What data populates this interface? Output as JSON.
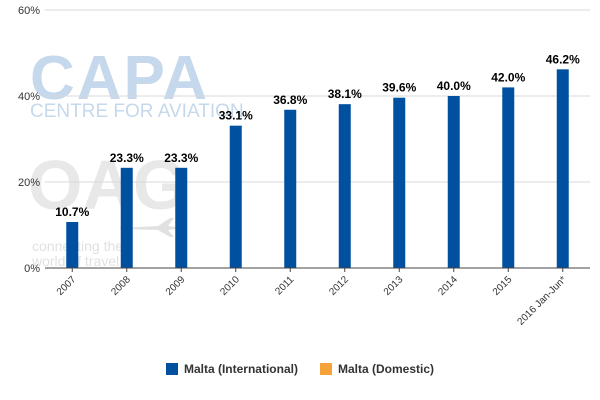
{
  "watermarks": {
    "capa_logo": "CAPA",
    "capa_tagline": "CENTRE FOR AVIATION",
    "oag_logo": "OAG",
    "oag_tagline_1": "connecting the",
    "oag_tagline_2": "world of travel"
  },
  "colors": {
    "international": "#0050a0",
    "domestic": "#f7a239",
    "grid": "#d9d9d9",
    "axis": "#444444",
    "label": "#000000",
    "tick_text": "#333333"
  },
  "legend": [
    {
      "name": "Malta (International)",
      "color": "#0050a0"
    },
    {
      "name": "Malta (Domestic)",
      "color": "#f7a239"
    }
  ],
  "chart_data": {
    "type": "bar",
    "title": "",
    "xlabel": "",
    "ylabel": "",
    "ylim": [
      0,
      60
    ],
    "yticks": [
      0,
      20,
      40,
      60
    ],
    "ytick_labels": [
      "0%",
      "20%",
      "40%",
      "60%"
    ],
    "grid": "horizontal",
    "legend_position": "bottom",
    "categories": [
      "2007",
      "2008",
      "2009",
      "2010",
      "2011",
      "2012",
      "2013",
      "2014",
      "2015",
      "2016 Jan-Jun*"
    ],
    "series": [
      {
        "name": "Malta (International)",
        "values": [
          10.7,
          23.3,
          23.3,
          33.1,
          36.8,
          38.1,
          39.6,
          40.0,
          42.0,
          46.2
        ],
        "labels": [
          "10.7%",
          "23.3%",
          "23.3%",
          "33.1%",
          "36.8%",
          "38.1%",
          "39.6%",
          "40.0%",
          "42.0%",
          "46.2%"
        ]
      },
      {
        "name": "Malta (Domestic)",
        "values": [
          0,
          0,
          0,
          0,
          0,
          0,
          0,
          0,
          0,
          0
        ]
      }
    ]
  }
}
